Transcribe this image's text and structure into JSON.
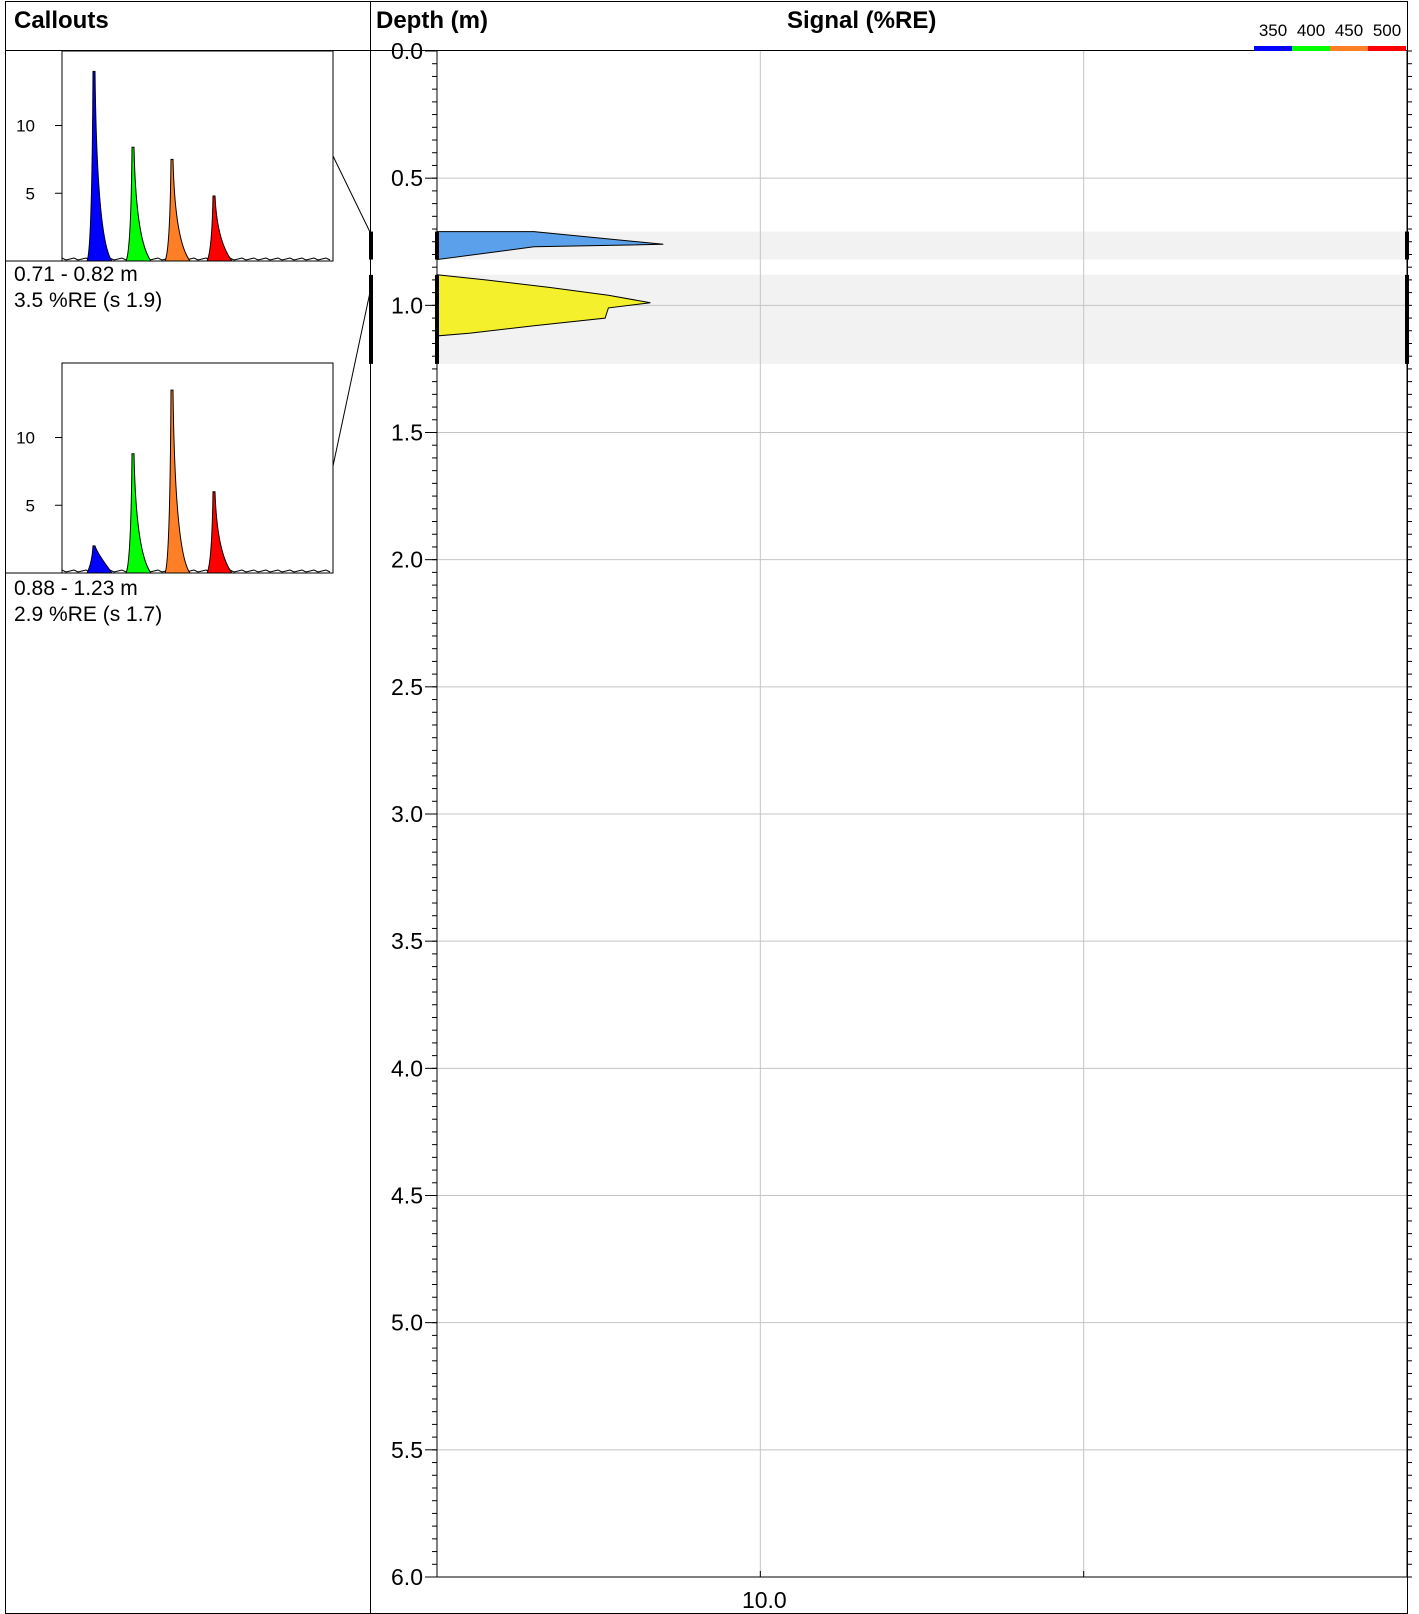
{
  "callouts_panel": {
    "title": "Callouts",
    "items": [
      {
        "range": "0.71 - 0.82 m",
        "value": "3.5 %RE (s 1.9)",
        "depth_top": 0.71,
        "depth_bottom": 0.82,
        "y_ticks": [
          "10",
          "5"
        ],
        "peaks": [
          {
            "channel": "350",
            "height": 14.0,
            "color": "#0000ff"
          },
          {
            "channel": "400",
            "height": 8.4,
            "color": "#00ff00"
          },
          {
            "channel": "450",
            "height": 7.5,
            "color": "#ff7f27"
          },
          {
            "channel": "500",
            "height": 4.8,
            "color": "#ff0000"
          }
        ]
      },
      {
        "range": "0.88 - 1.23 m",
        "value": "2.9 %RE (s 1.7)",
        "depth_top": 0.88,
        "depth_bottom": 1.23,
        "y_ticks": [
          "10",
          "5"
        ],
        "peaks": [
          {
            "channel": "350",
            "height": 2.0,
            "color": "#0000ff"
          },
          {
            "channel": "400",
            "height": 8.8,
            "color": "#00ff00"
          },
          {
            "channel": "450",
            "height": 13.5,
            "color": "#ff7f27"
          },
          {
            "channel": "500",
            "height": 6.0,
            "color": "#ff0000"
          }
        ]
      }
    ]
  },
  "legend": {
    "labels": [
      "350",
      "400",
      "450",
      "500"
    ],
    "colors": [
      "#0000ff",
      "#00ff00",
      "#ff7f27",
      "#ff0000"
    ]
  },
  "chart_data": {
    "type": "area",
    "title": "Signal (%RE)",
    "ylabel": "Depth (m)",
    "xlabel": "",
    "ylim": [
      0.0,
      6.0
    ],
    "y_inverted": true,
    "yticks": [
      "0.0",
      "0.5",
      "1.0",
      "1.5",
      "2.0",
      "2.5",
      "3.0",
      "3.5",
      "4.0",
      "4.5",
      "5.0",
      "5.5",
      "6.0"
    ],
    "xlim": [
      0.0,
      30.0
    ],
    "xticks": [
      "10.0"
    ],
    "grid": true,
    "intervals": [
      {
        "depth_top": 0.71,
        "depth_bottom": 0.82,
        "fill": "#5aa0ea",
        "profile": [
          [
            0.71,
            0.0
          ],
          [
            0.71,
            3.0
          ],
          [
            0.76,
            7.0
          ],
          [
            0.77,
            3.0
          ],
          [
            0.82,
            0.0
          ]
        ]
      },
      {
        "depth_top": 0.88,
        "depth_bottom": 1.23,
        "fill": "#f4f02c",
        "profile": [
          [
            0.88,
            0.0
          ],
          [
            0.9,
            1.5
          ],
          [
            0.93,
            3.5
          ],
          [
            0.96,
            5.3
          ],
          [
            0.99,
            6.6
          ],
          [
            1.01,
            5.3
          ],
          [
            1.05,
            5.2
          ],
          [
            1.08,
            3.0
          ],
          [
            1.11,
            1.0
          ],
          [
            1.12,
            0.0
          ]
        ]
      }
    ]
  }
}
